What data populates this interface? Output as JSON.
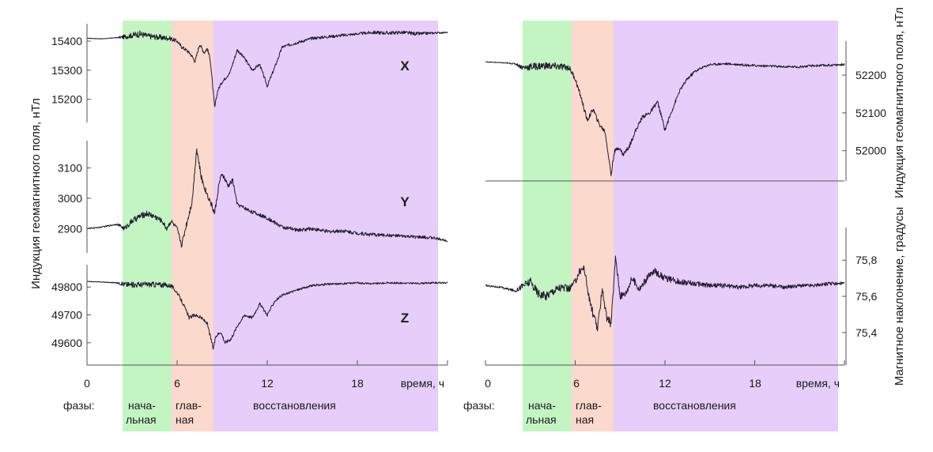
{
  "colors": {
    "phase_initial": "#c3f5c3",
    "phase_main": "#fbd9cc",
    "phase_recovery": "#e6cdfa",
    "trace": "#231a30",
    "trace_dense": "#1e3a1e",
    "axis": "#555555"
  },
  "phases": {
    "caption": "фазы:",
    "initial": {
      "line1": "нача-",
      "line2": "льная",
      "start_h": 2.5,
      "end_h": 5.6
    },
    "main": {
      "line1": "глав-",
      "line2": "ная",
      "start_h": 5.6,
      "end_h": 8.5
    },
    "recovery": {
      "label": "восстановления",
      "start_h": 8.5,
      "end_h": 23.2
    }
  },
  "left_panel": {
    "ylabel": "Индукция геомагнитного поля, нТл",
    "xlabel": "время, ч"
  },
  "right_panel": {
    "ylabel_top": "Индукция геомагнитного поля, нТл",
    "ylabel_bottom": "Магнитное наклонение, градусы",
    "xlabel": "время, ч"
  },
  "chart_data": [
    {
      "type": "line",
      "panel": "left",
      "label": "X",
      "xlim": [
        0,
        24
      ],
      "ylim": [
        15120,
        15460
      ],
      "yticks": [
        "15200",
        "15300",
        "15400"
      ],
      "xticks": [
        "0",
        "6",
        "12",
        "18"
      ],
      "x": [
        0,
        1,
        2,
        2.5,
        3,
        3.5,
        4,
        4.5,
        5,
        5.5,
        6,
        6.3,
        6.6,
        6.9,
        7.2,
        7.5,
        7.8,
        8.0,
        8.2,
        8.5,
        8.7,
        9,
        9.5,
        10,
        10.5,
        11,
        11.5,
        12,
        12.5,
        13,
        14,
        15,
        16,
        17,
        18,
        19,
        20,
        21,
        22,
        23,
        24
      ],
      "y": [
        15410,
        15408,
        15412,
        15415,
        15420,
        15425,
        15418,
        15415,
        15412,
        15410,
        15400,
        15380,
        15370,
        15355,
        15330,
        15390,
        15360,
        15375,
        15340,
        15170,
        15230,
        15260,
        15290,
        15370,
        15340,
        15300,
        15320,
        15245,
        15310,
        15380,
        15395,
        15410,
        15415,
        15420,
        15425,
        15430,
        15428,
        15430,
        15425,
        15428,
        15430
      ],
      "noise": [
        1,
        1,
        1,
        8,
        10,
        12,
        10,
        10,
        10,
        8,
        6,
        6,
        6,
        6,
        6,
        6,
        6,
        6,
        6,
        6,
        5,
        5,
        5,
        5,
        5,
        5,
        5,
        5,
        5,
        5,
        5,
        5,
        5,
        5,
        4,
        6,
        6,
        6,
        6,
        4,
        2
      ]
    },
    {
      "type": "line",
      "panel": "left",
      "label": "Y",
      "xlim": [
        0,
        24
      ],
      "ylim": [
        2820,
        3190
      ],
      "yticks": [
        "2900",
        "3000",
        "3100"
      ],
      "xticks": [
        "0",
        "6",
        "12",
        "18"
      ],
      "x": [
        0,
        1,
        2,
        2.5,
        3,
        3.5,
        4,
        4.5,
        5,
        5.3,
        5.6,
        6,
        6.3,
        6.6,
        7,
        7.3,
        7.6,
        7.9,
        8.2,
        8.5,
        8.8,
        9,
        9.4,
        9.7,
        10,
        11,
        12,
        13,
        14,
        15,
        16,
        17,
        18,
        19,
        20,
        21,
        22,
        23,
        24
      ],
      "y": [
        2900,
        2905,
        2915,
        2900,
        2925,
        2940,
        2950,
        2940,
        2925,
        2900,
        2925,
        2900,
        2845,
        2910,
        2990,
        3165,
        3070,
        3025,
        2990,
        2950,
        3050,
        3080,
        3040,
        3060,
        2980,
        2955,
        2935,
        2905,
        2895,
        2900,
        2890,
        2893,
        2885,
        2880,
        2878,
        2875,
        2872,
        2870,
        2860
      ],
      "noise": [
        2,
        2,
        3,
        8,
        10,
        10,
        10,
        10,
        8,
        8,
        8,
        6,
        8,
        10,
        10,
        12,
        10,
        10,
        10,
        10,
        10,
        8,
        8,
        8,
        6,
        6,
        6,
        6,
        6,
        6,
        6,
        6,
        6,
        6,
        5,
        5,
        5,
        5,
        3
      ]
    },
    {
      "type": "line",
      "panel": "left",
      "label": "Z",
      "xlim": [
        0,
        24
      ],
      "ylim": [
        49520,
        49880
      ],
      "yticks": [
        "49600",
        "49700",
        "49800"
      ],
      "xticks": [
        "0",
        "6",
        "12",
        "18"
      ],
      "x": [
        0,
        1,
        2,
        2.5,
        3,
        4,
        5,
        5.6,
        6,
        6.4,
        6.8,
        7.2,
        7.6,
        8,
        8.4,
        8.6,
        8.9,
        9.2,
        9.6,
        10,
        10.5,
        11,
        11.5,
        12,
        12.5,
        13,
        14,
        15,
        16,
        17,
        18,
        19,
        20,
        21,
        22,
        23,
        24
      ],
      "y": [
        49820,
        49818,
        49815,
        49810,
        49808,
        49810,
        49808,
        49805,
        49780,
        49740,
        49690,
        49700,
        49690,
        49670,
        49580,
        49625,
        49640,
        49600,
        49615,
        49660,
        49700,
        49690,
        49740,
        49700,
        49750,
        49770,
        49790,
        49805,
        49810,
        49812,
        49815,
        49812,
        49815,
        49814,
        49813,
        49815,
        49815
      ],
      "noise": [
        1,
        1,
        2,
        10,
        10,
        10,
        10,
        8,
        6,
        6,
        6,
        6,
        6,
        6,
        6,
        6,
        6,
        6,
        6,
        5,
        5,
        5,
        5,
        5,
        5,
        4,
        4,
        4,
        4,
        3,
        3,
        3,
        3,
        3,
        3,
        3,
        3
      ]
    },
    {
      "type": "line",
      "panel": "right",
      "xlim": [
        0,
        24
      ],
      "ylim": [
        51920,
        52290
      ],
      "yticks": [
        "52000",
        "52100",
        "52200"
      ],
      "xticks": [
        "0",
        "6",
        "12",
        "18"
      ],
      "x": [
        0,
        1,
        2,
        2.5,
        3,
        4,
        5,
        5.6,
        6,
        6.4,
        6.8,
        7.2,
        7.6,
        8,
        8.4,
        8.6,
        8.9,
        9.2,
        9.6,
        10,
        10.5,
        11,
        11.5,
        12,
        12.5,
        13,
        13.5,
        14,
        14.5,
        15,
        16,
        17,
        18,
        19,
        20,
        21,
        22,
        23,
        24
      ],
      "y": [
        52235,
        52233,
        52230,
        52220,
        52222,
        52225,
        52222,
        52220,
        52190,
        52140,
        52080,
        52110,
        52070,
        52050,
        51935,
        51995,
        52010,
        51990,
        52010,
        52050,
        52090,
        52100,
        52130,
        52055,
        52110,
        52160,
        52190,
        52210,
        52220,
        52228,
        52230,
        52228,
        52225,
        52224,
        52222,
        52222,
        52225,
        52226,
        52228
      ],
      "noise": [
        1,
        1,
        2,
        8,
        10,
        10,
        10,
        8,
        6,
        6,
        6,
        6,
        6,
        6,
        6,
        6,
        6,
        6,
        6,
        5,
        5,
        5,
        5,
        5,
        5,
        4,
        4,
        4,
        3,
        3,
        3,
        3,
        3,
        3,
        3,
        3,
        3,
        3,
        3
      ]
    },
    {
      "type": "line",
      "panel": "right",
      "xlim": [
        0,
        24
      ],
      "ylim": [
        75.22,
        75.98
      ],
      "yticks": [
        "75,4",
        "75,6",
        "75,8"
      ],
      "xticks": [
        "0",
        "6",
        "12",
        "18"
      ],
      "x": [
        0,
        1,
        2,
        2.5,
        3,
        3.5,
        4,
        4.5,
        5,
        5.6,
        6,
        6.3,
        6.6,
        6.9,
        7.2,
        7.5,
        7.8,
        8.1,
        8.4,
        8.7,
        9,
        9.4,
        9.8,
        10.3,
        10.8,
        11.3,
        12,
        13,
        14,
        15,
        16,
        17,
        18,
        19,
        20,
        21,
        22,
        23,
        24
      ],
      "y": [
        75.66,
        75.65,
        75.63,
        75.66,
        75.68,
        75.62,
        75.6,
        75.63,
        75.65,
        75.64,
        75.68,
        75.74,
        75.76,
        75.6,
        75.5,
        75.42,
        75.65,
        75.48,
        75.45,
        75.82,
        75.6,
        75.62,
        75.7,
        75.64,
        75.7,
        75.74,
        75.7,
        75.68,
        75.67,
        75.66,
        75.66,
        75.65,
        75.66,
        75.66,
        75.65,
        75.66,
        75.66,
        75.67,
        75.67
      ],
      "noise": [
        0.005,
        0.005,
        0.008,
        0.02,
        0.025,
        0.025,
        0.025,
        0.025,
        0.025,
        0.02,
        0.02,
        0.02,
        0.02,
        0.02,
        0.025,
        0.025,
        0.025,
        0.025,
        0.025,
        0.02,
        0.02,
        0.02,
        0.02,
        0.02,
        0.02,
        0.02,
        0.018,
        0.016,
        0.015,
        0.014,
        0.013,
        0.012,
        0.012,
        0.012,
        0.01,
        0.01,
        0.01,
        0.01,
        0.01
      ]
    }
  ]
}
